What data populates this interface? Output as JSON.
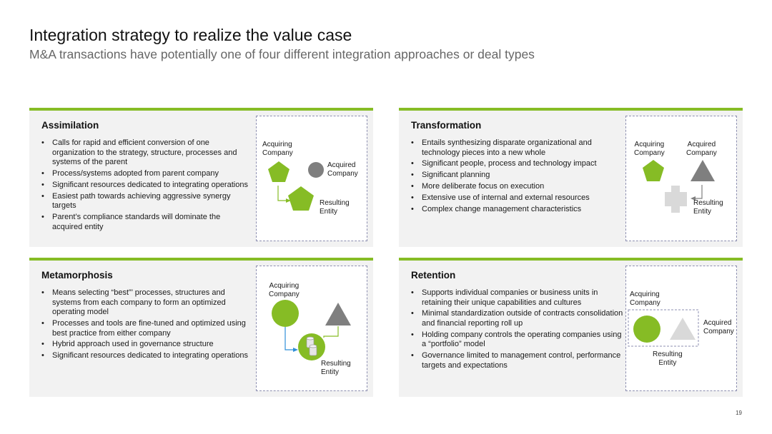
{
  "header": {
    "title": "Integration strategy to realize the value case",
    "subtitle": "M&A transactions have potentially one of four different integration approaches or deal types"
  },
  "colors": {
    "accent": "#86bc25",
    "green_shape": "#86bc25",
    "gray_shape": "#7f7f7f",
    "light_gray_shape": "#d9d9d9",
    "connector_green": "#86bc25",
    "connector_blue": "#2f8fd8"
  },
  "panels": {
    "assimilation": {
      "title": "Assimilation",
      "bullets": [
        "Calls for rapid and efficient conversion of one organization to the strategy, structure, processes and systems of the parent",
        "Process/systems adopted from parent company",
        "Significant resources dedicated to integrating operations",
        "Easiest path towards achieving aggressive synergy targets",
        "Parent’s compliance standards will dominate the acquired entity"
      ],
      "diagram": {
        "acquiring": "Acquiring\nCompany",
        "acquired": "Acquired\nCompany",
        "resulting": "Resulting\nEntity",
        "icons": [
          "pentagon-icon",
          "circle-icon",
          "pentagon-icon"
        ]
      }
    },
    "transformation": {
      "title": "Transformation",
      "bullets": [
        "Entails synthesizing disparate organizational and technology pieces into a new whole",
        "Significant people, process and technology impact",
        "Significant planning",
        "More deliberate focus on execution",
        "Extensive use of internal and external resources",
        "Complex change management characteristics"
      ],
      "diagram": {
        "acquiring": "Acquiring\nCompany",
        "acquired": "Acquired\nCompany",
        "resulting": "Resulting\nEntity",
        "icons": [
          "pentagon-icon",
          "triangle-icon",
          "cross-icon"
        ]
      }
    },
    "metamorphosis": {
      "title": "Metamorphosis",
      "bullets": [
        "Means selecting “best”’ processes, structures and systems from each company to form an optimized operating model",
        "Processes and tools are fine-tuned and optimized using best practice from either company",
        "Hybrid approach used in governance structure",
        "Significant resources dedicated to integrating operations"
      ],
      "diagram": {
        "acquiring": "Acquiring\nCompany",
        "resulting": "Resulting\nEntity",
        "icons": [
          "circle-icon",
          "triangle-icon",
          "database-icon"
        ]
      }
    },
    "retention": {
      "title": "Retention",
      "bullets": [
        "Supports individual companies or business units in retaining their unique capabilities and cultures",
        "Minimal standardization outside of contracts consolidation and financial reporting roll up",
        "Holding company controls the operating companies using a “portfolio” model",
        "Governance limited to management control, performance targets and expectations"
      ],
      "diagram": {
        "acquiring": "Acquiring\nCompany",
        "acquired": "Acquired\nCompany",
        "resulting": "Resulting\nEntity",
        "icons": [
          "circle-icon",
          "triangle-icon"
        ]
      }
    }
  },
  "footer": {
    "page_number": "19"
  }
}
